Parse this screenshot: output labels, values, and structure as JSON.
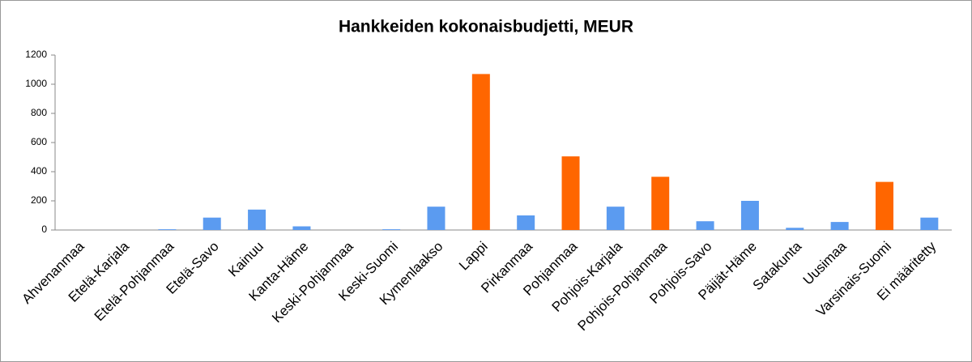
{
  "chart_data": {
    "type": "bar",
    "title": "Hankkeiden kokonaisbudjetti, MEUR",
    "categories": [
      "Ahvenanmaa",
      "Etelä-Karjala",
      "Etelä-Pohjanmaa",
      "Etelä-Savo",
      "Kainuu",
      "Kanta-Häme",
      "Keski-Pohjanmaa",
      "Keski-Suomi",
      "Kymenlaakso",
      "Lappi",
      "Pirkanmaa",
      "Pohjanmaa",
      "Pohjois-Karjala",
      "Pohjois-Pohjanmaa",
      "Pohjois-Savo",
      "Päijät-Häme",
      "Satakunta",
      "Uusimaa",
      "Varsinais-Suomi",
      "Ei määritetty"
    ],
    "values": [
      0,
      0,
      5,
      85,
      140,
      25,
      0,
      5,
      160,
      1070,
      100,
      505,
      160,
      365,
      60,
      200,
      15,
      55,
      330,
      85
    ],
    "colors": [
      "#5b9bf0",
      "#5b9bf0",
      "#5b9bf0",
      "#5b9bf0",
      "#5b9bf0",
      "#5b9bf0",
      "#5b9bf0",
      "#5b9bf0",
      "#5b9bf0",
      "#ff6600",
      "#5b9bf0",
      "#ff6600",
      "#5b9bf0",
      "#ff6600",
      "#5b9bf0",
      "#5b9bf0",
      "#5b9bf0",
      "#5b9bf0",
      "#ff6600",
      "#5b9bf0"
    ],
    "ylim": [
      0,
      1200
    ],
    "yticks": [
      0,
      200,
      400,
      600,
      800,
      1000,
      1200
    ],
    "grid": false
  }
}
